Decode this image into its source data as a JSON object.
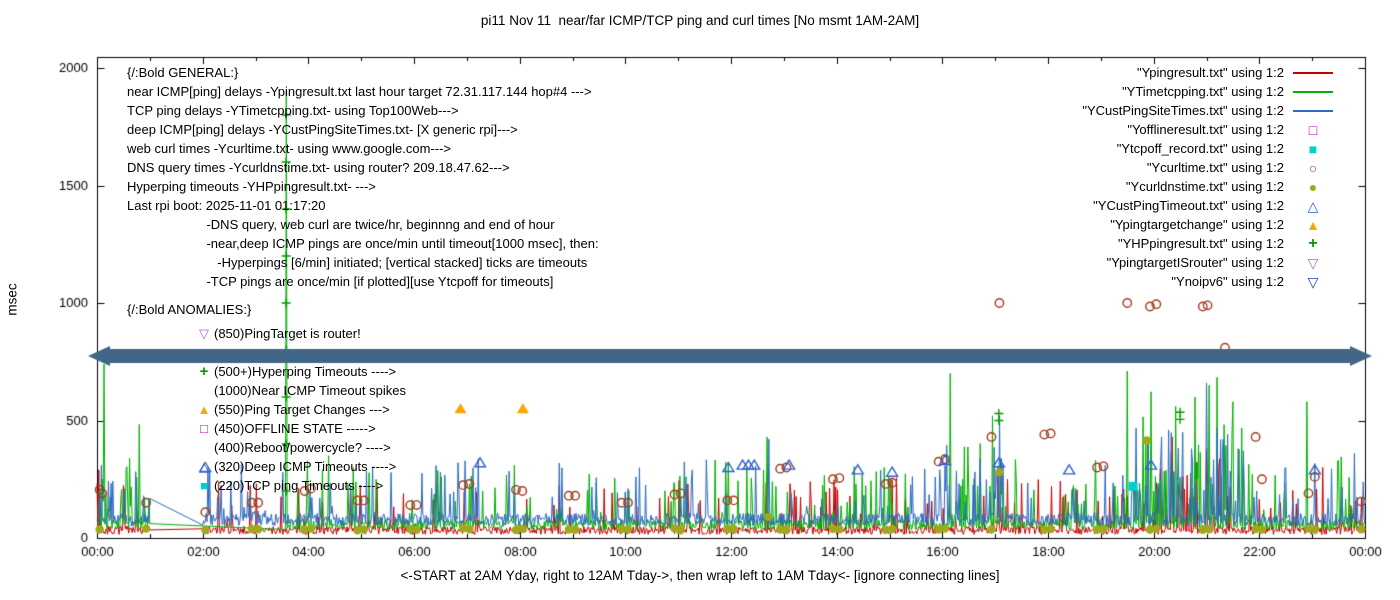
{
  "chart_data": {
    "type": "line",
    "title": "pi11 Nov 11  near/far ICMP/TCP ping and curl times [No msmt 1AM-2AM]",
    "xlabel": "<-START at 2AM Yday, right to 12AM Tday->, then wrap left to 1AM Tday<- [ignore connecting lines]",
    "ylabel": "msec",
    "xlim": [
      0,
      24
    ],
    "ylim": [
      0,
      2000
    ],
    "x_ticks": [
      "00:00",
      "02:00",
      "04:00",
      "06:00",
      "08:00",
      "10:00",
      "12:00",
      "14:00",
      "16:00",
      "18:00",
      "20:00",
      "22:00",
      "00:00"
    ],
    "y_ticks": [
      0,
      500,
      1000,
      1500,
      2000
    ],
    "grid": false,
    "legend_position": "top-right",
    "series": [
      {
        "name": "Ypingresult",
        "legend": "\"Ypingresult.txt\" using 1:2",
        "kind": "line",
        "marker": null,
        "color": "#c80000",
        "seed": 7,
        "base": 15,
        "jitter": 35,
        "spike_prob": 0.1,
        "spike_amp": 220,
        "gap": [
          1,
          2
        ],
        "busy": [
          [
            0.0,
            1.0,
            0.12,
            180
          ],
          [
            20.0,
            21.6,
            0.18,
            320
          ]
        ],
        "spikes": [
          [
            0.03,
            290
          ],
          [
            2.3,
            240
          ],
          [
            5.3,
            230
          ],
          [
            9.6,
            210
          ],
          [
            13.5,
            240
          ],
          [
            17.05,
            300
          ],
          [
            20.35,
            430
          ],
          [
            21.0,
            380
          ],
          [
            23.2,
            300
          ]
        ]
      },
      {
        "name": "YTimetcpping",
        "legend": "\"YTimetcpping.txt\" using 1:2",
        "kind": "line",
        "marker": null,
        "color": "#00b000",
        "seed": 13,
        "base": 35,
        "jitter": 45,
        "spike_prob": 0.13,
        "spike_amp": 280,
        "gap": [
          1,
          3.55
        ],
        "busy": [
          [
            0.0,
            1.0,
            0.2,
            250
          ],
          [
            16.0,
            17.3,
            0.2,
            350
          ],
          [
            19.6,
            21.7,
            0.3,
            450
          ]
        ],
        "spikes": [
          [
            0.13,
            740
          ],
          [
            0.62,
            340
          ],
          [
            3.58,
            1900
          ],
          [
            4.85,
            300
          ],
          [
            7.9,
            310
          ],
          [
            12.68,
            430
          ],
          [
            14.9,
            300
          ],
          [
            16.15,
            700
          ],
          [
            16.95,
            520
          ],
          [
            18.9,
            330
          ],
          [
            19.5,
            710
          ],
          [
            20.42,
            560
          ],
          [
            20.78,
            600
          ],
          [
            21.05,
            650
          ],
          [
            21.5,
            580
          ],
          [
            22.9,
            580
          ],
          [
            23.5,
            330
          ]
        ]
      },
      {
        "name": "YCustPingSiteTimes",
        "legend": "\"YCustPingSiteTimes.txt\" using 1:2",
        "kind": "line",
        "marker": null,
        "color": "#2e6bc0",
        "seed": 29,
        "base": 50,
        "jitter": 55,
        "spike_prob": 0.12,
        "spike_amp": 240,
        "gap": [
          1,
          2
        ],
        "busy": [
          [
            0.0,
            1.0,
            0.15,
            200
          ],
          [
            16.0,
            17.3,
            0.2,
            300
          ],
          [
            19.6,
            21.7,
            0.3,
            400
          ]
        ],
        "spikes": [
          [
            2.1,
            300
          ],
          [
            6.5,
            280
          ],
          [
            10.2,
            260
          ],
          [
            12.72,
            420
          ],
          [
            17.08,
            520
          ],
          [
            19.9,
            410
          ],
          [
            20.15,
            430
          ],
          [
            20.55,
            450
          ],
          [
            20.72,
            380
          ],
          [
            21.0,
            660
          ],
          [
            21.32,
            420
          ],
          [
            21.6,
            380
          ],
          [
            22.5,
            300
          ],
          [
            23.8,
            360
          ]
        ]
      },
      {
        "name": "Yofflineresult",
        "legend": "\"Yofflineresult.txt\" using 1:2",
        "kind": "points",
        "marker": "square-open",
        "color": "#bb00bb",
        "points": []
      },
      {
        "name": "Ytcpoff_record",
        "legend": "\"Ytcpoff_record.txt\" using 1:2",
        "kind": "points",
        "marker": "square-filled",
        "color": "#00d0d0",
        "points": [
          [
            19.61,
            220
          ]
        ]
      },
      {
        "name": "Ycurltime",
        "legend": "\"Ycurltime.txt\" using 1:2",
        "kind": "points",
        "marker": "circle-open",
        "color": "#a03c1e",
        "points": [
          [
            0.05,
            205
          ],
          [
            0.1,
            190
          ],
          [
            0.93,
            150
          ],
          [
            2.05,
            110
          ],
          [
            2.93,
            150
          ],
          [
            3.05,
            150
          ],
          [
            3.93,
            200
          ],
          [
            4.05,
            210
          ],
          [
            4.93,
            160
          ],
          [
            5.05,
            160
          ],
          [
            5.93,
            140
          ],
          [
            6.05,
            140
          ],
          [
            6.93,
            225
          ],
          [
            7.05,
            230
          ],
          [
            7.93,
            205
          ],
          [
            8.05,
            200
          ],
          [
            8.93,
            180
          ],
          [
            9.05,
            180
          ],
          [
            9.93,
            150
          ],
          [
            10.05,
            150
          ],
          [
            10.93,
            185
          ],
          [
            11.05,
            190
          ],
          [
            11.93,
            160
          ],
          [
            12.05,
            160
          ],
          [
            12.93,
            295
          ],
          [
            13.05,
            300
          ],
          [
            13.93,
            250
          ],
          [
            14.05,
            255
          ],
          [
            14.93,
            230
          ],
          [
            15.05,
            235
          ],
          [
            15.93,
            325
          ],
          [
            16.05,
            335
          ],
          [
            16.93,
            430
          ],
          [
            17.08,
            1000
          ],
          [
            17.93,
            440
          ],
          [
            18.05,
            445
          ],
          [
            18.93,
            300
          ],
          [
            19.05,
            305
          ],
          [
            19.5,
            1000
          ],
          [
            19.93,
            985
          ],
          [
            20.05,
            995
          ],
          [
            20.93,
            985
          ],
          [
            21.02,
            990
          ],
          [
            21.35,
            810
          ],
          [
            21.93,
            430
          ],
          [
            22.05,
            250
          ],
          [
            22.93,
            190
          ],
          [
            23.05,
            260
          ],
          [
            23.93,
            155
          ]
        ]
      },
      {
        "name": "Ycurldnstime",
        "legend": "\"Ycurldnstime.txt\" using 1:2",
        "kind": "points",
        "marker": "circle-filled",
        "color": "#a2a81c",
        "points": [
          [
            0.05,
            36
          ],
          [
            0.93,
            40
          ],
          [
            2.05,
            34
          ],
          [
            2.93,
            38
          ],
          [
            3.05,
            37
          ],
          [
            3.93,
            35
          ],
          [
            4.05,
            40
          ],
          [
            4.93,
            33
          ],
          [
            5.05,
            36
          ],
          [
            5.93,
            38
          ],
          [
            6.05,
            35
          ],
          [
            6.93,
            41
          ],
          [
            7.05,
            37
          ],
          [
            7.93,
            34
          ],
          [
            8.05,
            39
          ],
          [
            8.93,
            36
          ],
          [
            9.05,
            35
          ],
          [
            9.93,
            38
          ],
          [
            10.05,
            36
          ],
          [
            10.93,
            40
          ],
          [
            11.05,
            34
          ],
          [
            11.93,
            37
          ],
          [
            12.05,
            38
          ],
          [
            12.7,
            90
          ],
          [
            12.93,
            36
          ],
          [
            13.05,
            35
          ],
          [
            13.93,
            39
          ],
          [
            14.05,
            37
          ],
          [
            14.93,
            35
          ],
          [
            15.05,
            38
          ],
          [
            15.93,
            36
          ],
          [
            16.05,
            40
          ],
          [
            16.93,
            37
          ],
          [
            17.08,
            280
          ],
          [
            17.93,
            36
          ],
          [
            18.05,
            38
          ],
          [
            18.93,
            35
          ],
          [
            19.05,
            37
          ],
          [
            19.87,
            415
          ],
          [
            19.93,
            36
          ],
          [
            20.05,
            39
          ],
          [
            20.93,
            35
          ],
          [
            21.05,
            37
          ],
          [
            21.93,
            38
          ],
          [
            22.05,
            36
          ],
          [
            22.93,
            40
          ],
          [
            23.05,
            35
          ],
          [
            23.93,
            37
          ]
        ]
      },
      {
        "name": "YCustPingTimeout",
        "legend": "\"YCustPingTimeout.txt\" using 1:2",
        "kind": "points",
        "marker": "triangle-up-open",
        "color": "#3060d0",
        "points": [
          [
            2.05,
            300
          ],
          [
            7.25,
            320
          ],
          [
            11.95,
            300
          ],
          [
            12.22,
            310
          ],
          [
            12.33,
            310
          ],
          [
            12.44,
            310
          ],
          [
            13.1,
            310
          ],
          [
            14.4,
            290
          ],
          [
            15.05,
            280
          ],
          [
            16.05,
            330
          ],
          [
            17.07,
            320
          ],
          [
            18.4,
            290
          ],
          [
            19.95,
            310
          ],
          [
            23.05,
            290
          ]
        ]
      },
      {
        "name": "Ypingtargetchange",
        "legend": "\"Ypingtargetchange\" using 1:2",
        "kind": "points",
        "marker": "triangle-up-filled",
        "color": "#ffa500",
        "points": [
          [
            6.88,
            550
          ],
          [
            8.06,
            550
          ]
        ]
      },
      {
        "name": "YHPpingresult",
        "legend": "\"YHPpingresult.txt\" using 1:2",
        "kind": "points",
        "marker": "plus",
        "color": "#009900",
        "points": [
          [
            3.58,
            200
          ],
          [
            3.58,
            400
          ],
          [
            3.58,
            600
          ],
          [
            3.58,
            800
          ],
          [
            3.58,
            1000
          ],
          [
            3.58,
            1200
          ],
          [
            3.58,
            1400
          ],
          [
            3.58,
            1600
          ],
          [
            3.58,
            1800
          ],
          [
            17.07,
            500
          ],
          [
            17.07,
            530
          ],
          [
            20.5,
            505
          ],
          [
            20.5,
            535
          ]
        ]
      },
      {
        "name": "YpingtargetISrouter",
        "legend": "\"YpingtargetISrouter\" using 1:2",
        "kind": "points",
        "marker": "triangle-down-open",
        "color": "#b266cc",
        "points": []
      },
      {
        "name": "Ynoipv6",
        "legend": "\"Ynoipv6\" using 1:2",
        "kind": "points",
        "marker": "triangle-down-open",
        "color": "#2244aa",
        "points": []
      }
    ]
  },
  "annotations": {
    "general": [
      "{/:Bold GENERAL:}",
      "near ICMP[ping] delays -Ypingresult.txt last hour target 72.31.117.144 hop#4 --->",
      "TCP ping delays -YTimetcpping.txt- using Top100Web--->",
      "deep ICMP[ping] delays -YCustPingSiteTimes.txt- [X generic rpi]--->",
      "web curl times -Ycurltime.txt- using www.google.com--->",
      "DNS query times -Ycurldnstime.txt- using router? 209.18.47.62--->",
      "Hyperping timeouts -YHPpingresult.txt- --->",
      "Last rpi boot: 2025-11-01 01:17:20",
      "                      -DNS query, web curl are twice/hr, beginnng and end of hour",
      "                      -near,deep ICMP pings are once/min until timeout[1000 msec], then:",
      "                         -Hyperpings [6/min] initiated; [vertical stacked] ticks are timeouts",
      "                      -TCP pings are once/min [if plotted][use Ytcpoff for timeouts]"
    ],
    "anomalies_heading": "{/:Bold ANOMALIES:}",
    "anomalies": [
      {
        "icon": "triangle-down-open",
        "color": "#b266cc",
        "text": "(850)PingTarget is router!"
      },
      {
        "icon": null,
        "color": null,
        "text": ""
      },
      {
        "icon": "plus",
        "color": "#009900",
        "text": "(500+)Hyperping Timeouts ---->"
      },
      {
        "icon": null,
        "color": null,
        "text": "(1000)Near ICMP Timeout spikes"
      },
      {
        "icon": "triangle-up-filled",
        "color": "#ffa500",
        "text": "(550)Ping Target Changes --->"
      },
      {
        "icon": "square-open",
        "color": "#bb00bb",
        "text": "(450)OFFLINE STATE ----->"
      },
      {
        "icon": null,
        "color": null,
        "text": "(400)Reboot/powercycle? ---->"
      },
      {
        "icon": "triangle-up-open",
        "color": "#3060d0",
        "text": "(320)Deep ICMP Timeouts ---->"
      },
      {
        "icon": "square-filled",
        "color": "#00d0d0",
        "text": "(220)TCP ping Timeouts ---->"
      }
    ],
    "band": {
      "y_msec": 775,
      "color": "#416688"
    }
  }
}
